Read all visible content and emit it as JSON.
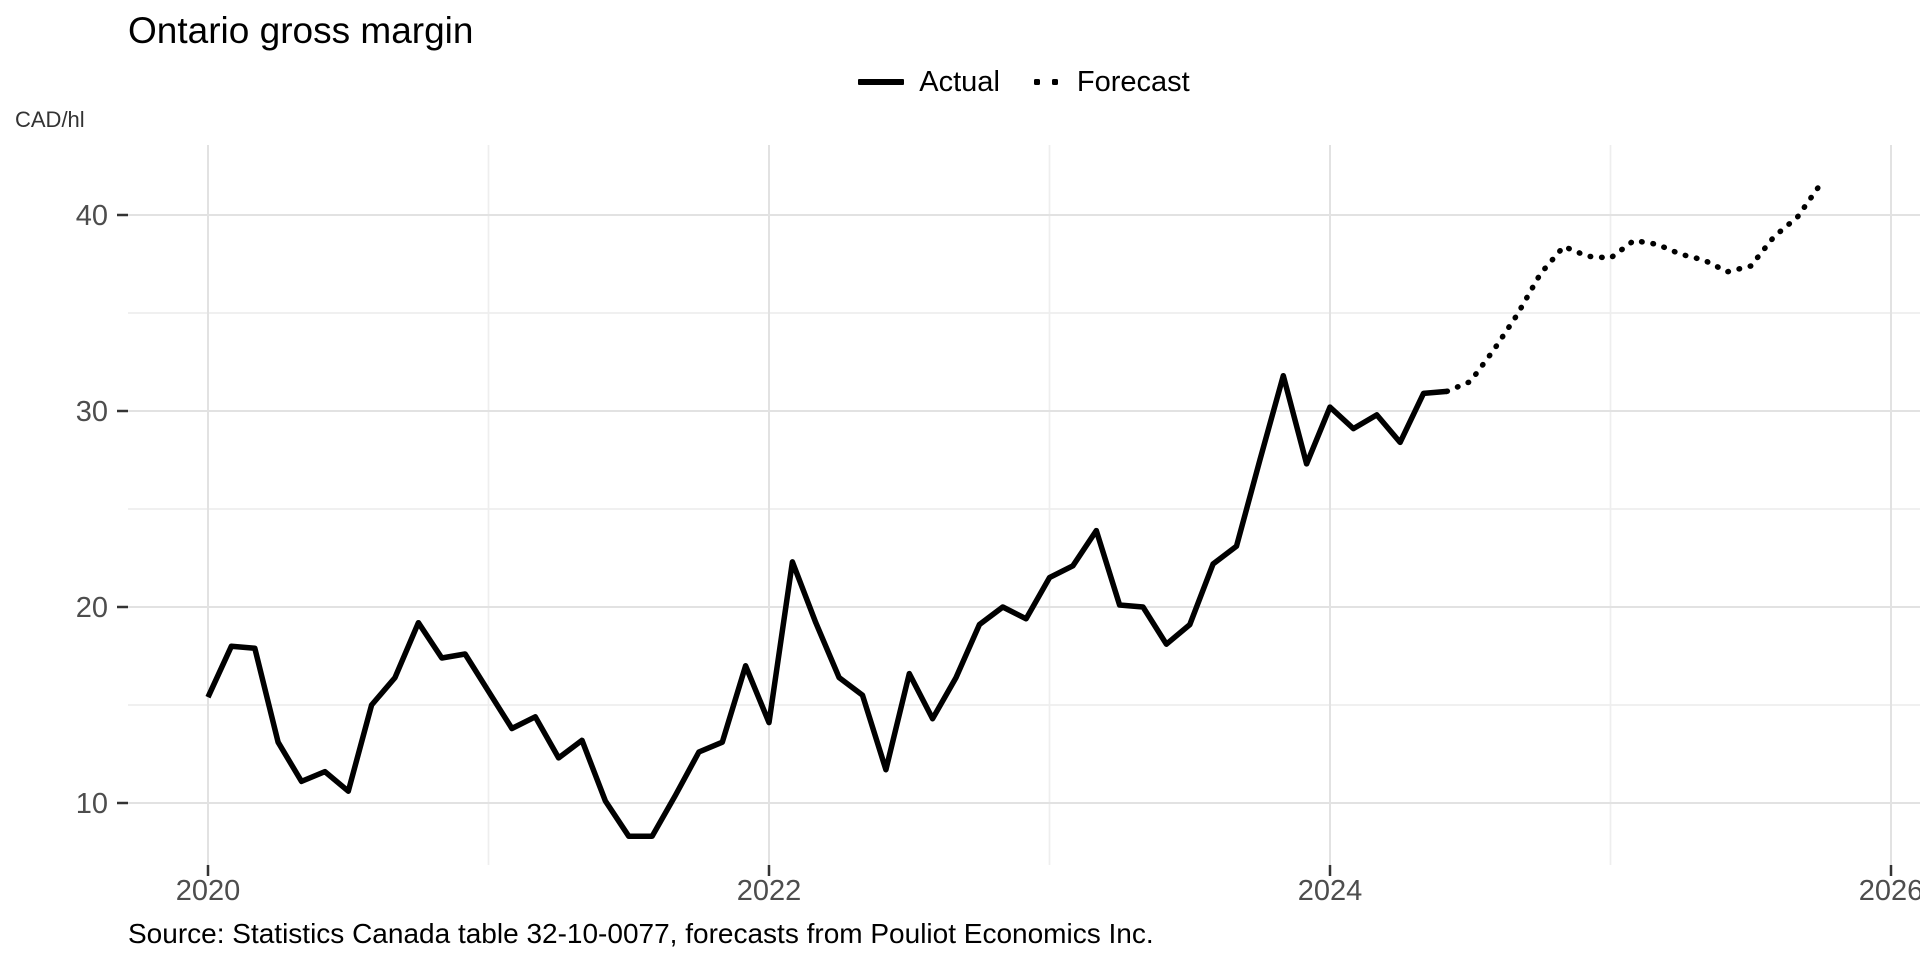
{
  "title": "Ontario gross margin",
  "axis_unit_label": "CAD/hl",
  "legend": {
    "actual_label": "Actual",
    "forecast_label": "Forecast"
  },
  "source_note": "Source: Statistics Canada table 32-10-0077, forecasts from Pouliot Economics Inc.",
  "colors": {
    "line": "#000000",
    "tick_label": "#4d4d4d",
    "tick_mark": "#333333",
    "grid_major": "#e2e2e2",
    "grid_minor": "#eeeeee",
    "background": "#ffffff"
  },
  "chart_data": {
    "type": "line",
    "title": "Ontario gross margin",
    "ylabel": "CAD/hl",
    "xlabel": "",
    "grid": true,
    "legend_position": "top-center",
    "x_tick_years": [
      2020,
      2022,
      2024,
      2026
    ],
    "x_minor_years": [
      2021,
      2023,
      2025
    ],
    "y_ticks": [
      10,
      20,
      30,
      40
    ],
    "y_minor_ticks": [
      15,
      25,
      35
    ],
    "xlim_years": [
      2019.7,
      2026.1
    ],
    "ylim": [
      6.8,
      43.6
    ],
    "frequency": "monthly",
    "series": [
      {
        "name": "Actual",
        "style": "solid",
        "start_year": 2020,
        "start_month": 1,
        "values": [
          15.4,
          18.0,
          17.9,
          13.1,
          11.1,
          11.6,
          10.6,
          15.0,
          16.4,
          19.2,
          17.4,
          17.6,
          15.7,
          13.8,
          14.4,
          12.3,
          13.2,
          10.1,
          8.3,
          8.3,
          10.4,
          12.6,
          13.1,
          17.0,
          14.1,
          22.3,
          19.2,
          16.4,
          15.5,
          11.7,
          16.6,
          14.3,
          16.4,
          19.1,
          20.0,
          19.4,
          21.5,
          22.1,
          23.9,
          20.1,
          20.0,
          18.1,
          19.1,
          22.2,
          23.1,
          27.5,
          31.8,
          27.3,
          30.2,
          29.1,
          29.8,
          28.4,
          30.9,
          31.0
        ]
      },
      {
        "name": "Forecast",
        "style": "dotted",
        "start_year": 2024,
        "start_month": 6,
        "values": [
          31.0,
          31.5,
          33.1,
          34.9,
          37.0,
          38.4,
          37.9,
          37.8,
          38.7,
          38.5,
          38.0,
          37.7,
          37.1,
          37.4,
          38.9,
          39.9,
          41.6
        ]
      }
    ]
  }
}
